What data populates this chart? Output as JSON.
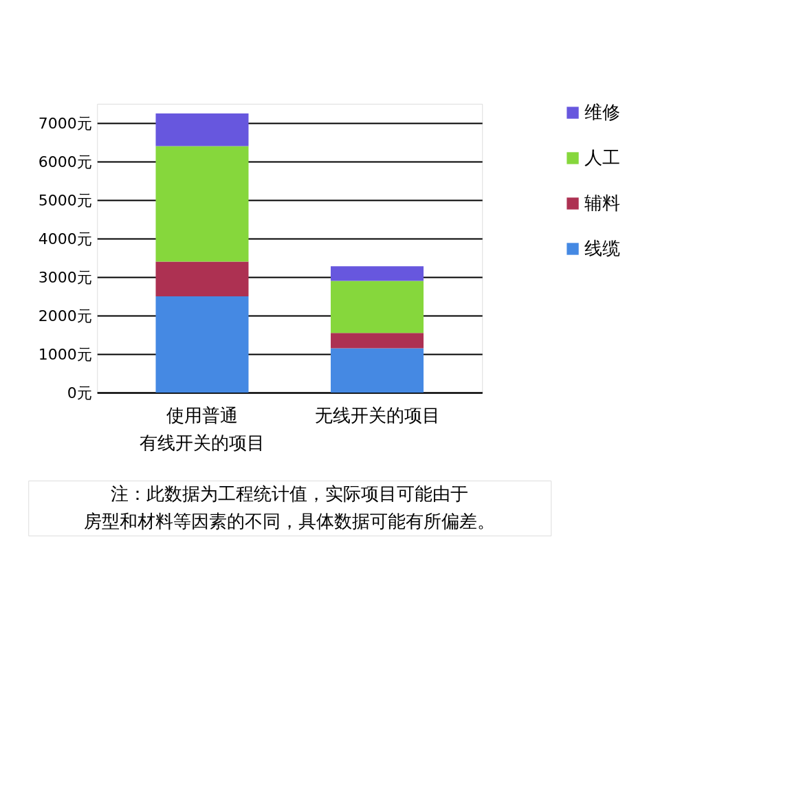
{
  "chart_data": {
    "type": "bar",
    "stacked": true,
    "categories": [
      "使用普通有线开关的项目",
      "无线开关的项目"
    ],
    "series": [
      {
        "name": "线缆",
        "color": "#4589e3",
        "values": [
          2500,
          1150
        ]
      },
      {
        "name": "辅料",
        "color": "#ad3152",
        "values": [
          900,
          400
        ]
      },
      {
        "name": "人工",
        "color": "#86d73c",
        "values": [
          3000,
          1350
        ]
      },
      {
        "name": "维修",
        "color": "#6757de",
        "values": [
          850,
          380
        ]
      }
    ],
    "ylim": [
      0,
      7500
    ],
    "yticks": [
      {
        "value": 0,
        "label": "0元"
      },
      {
        "value": 1000,
        "label": "1000元"
      },
      {
        "value": 2000,
        "label": "2000元"
      },
      {
        "value": 3000,
        "label": "3000元"
      },
      {
        "value": 4000,
        "label": "4000元"
      },
      {
        "value": 5000,
        "label": "5000元"
      },
      {
        "value": 6000,
        "label": "6000元"
      },
      {
        "value": 7000,
        "label": "7000元"
      }
    ],
    "grid": "y",
    "legend": "top right",
    "annotations": [
      "注：此数据为工程统计值，实际项目可能由于",
      "房型和材料等因素的不同，具体数据可能有所偏差。"
    ]
  }
}
